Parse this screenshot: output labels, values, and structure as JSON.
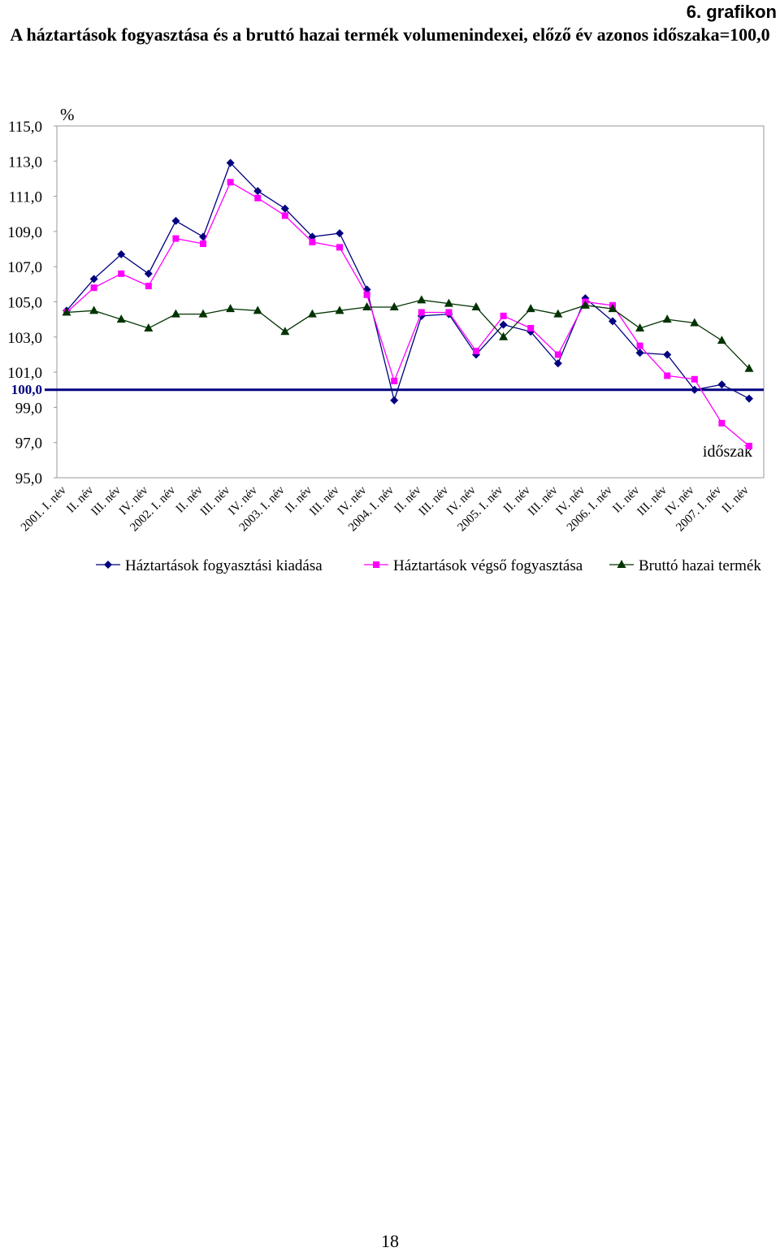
{
  "figure_label": "6. grafikon",
  "page_number": "18",
  "chart_data": {
    "type": "line",
    "title": "A háztartások fogyasztása és a bruttó hazai termék volumenindexei, előző év azonos időszaka=100,0",
    "y_label": "%",
    "x_label": "időszak",
    "categories": [
      "2001. I. név",
      "II. név",
      "III. név",
      "IV. név",
      "2002. I. név",
      "II. név",
      "III. név",
      "IV. név",
      "2003. I. név",
      "II. név",
      "III. név",
      "IV. név",
      "2004. I. név",
      "II. név",
      "III. név",
      "IV. név",
      "2005. I. név",
      "II. név",
      "III. név",
      "IV. név",
      "2006. I. név",
      "II. név",
      "III. név",
      "IV. név",
      "2007. I. név",
      "II. név"
    ],
    "series": [
      {
        "name": "Háztartások fogyasztási kiadása",
        "color": "#000080",
        "marker": "diamond",
        "values": [
          104.5,
          106.3,
          107.7,
          106.6,
          109.6,
          108.7,
          112.9,
          111.3,
          110.3,
          108.7,
          108.9,
          105.7,
          99.4,
          104.2,
          104.3,
          102.0,
          103.7,
          103.3,
          101.5,
          105.2,
          103.9,
          102.1,
          102.0,
          100.0,
          100.3,
          99.5
        ]
      },
      {
        "name": "Háztartások végső fogyasztása",
        "color": "#ff00ff",
        "marker": "square",
        "values": [
          104.4,
          105.8,
          106.6,
          105.9,
          108.6,
          108.3,
          111.8,
          110.9,
          109.9,
          108.4,
          108.1,
          105.4,
          100.5,
          104.4,
          104.4,
          102.2,
          104.2,
          103.5,
          102.0,
          105.0,
          104.8,
          102.5,
          100.8,
          100.6,
          98.1,
          96.8
        ]
      },
      {
        "name": "Bruttó hazai termék",
        "color": "#003300",
        "marker": "triangle",
        "values": [
          104.4,
          104.5,
          104.0,
          103.5,
          104.3,
          104.3,
          104.6,
          104.5,
          103.3,
          104.3,
          104.5,
          104.7,
          104.7,
          105.1,
          104.9,
          104.7,
          103.0,
          104.6,
          104.3,
          104.8,
          104.6,
          103.5,
          104.0,
          103.8,
          102.8,
          101.2
        ]
      }
    ],
    "ylim": [
      95,
      115
    ],
    "yticks": [
      {
        "value": 95,
        "label": "95,0"
      },
      {
        "value": 97,
        "label": "97,0"
      },
      {
        "value": 99,
        "label": "99,0"
      },
      {
        "value": 101,
        "label": "101,0"
      },
      {
        "value": 103,
        "label": "103,0"
      },
      {
        "value": 105,
        "label": "105,0"
      },
      {
        "value": 107,
        "label": "107,0"
      },
      {
        "value": 109,
        "label": "109,0"
      },
      {
        "value": 111,
        "label": "111,0"
      },
      {
        "value": 113,
        "label": "113,0"
      },
      {
        "value": 115,
        "label": "115,0"
      }
    ],
    "reference_line": {
      "value": 100,
      "label": "100,0",
      "color": "#000080"
    },
    "grid": false,
    "legend": "bottom"
  }
}
